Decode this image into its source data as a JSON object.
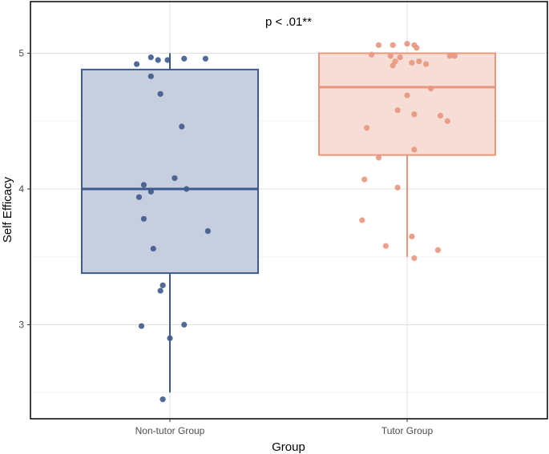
{
  "chart_data": {
    "type": "boxplot",
    "title": "",
    "xlabel": "Group",
    "ylabel": "Self Efficacy",
    "ylim": [
      2.4,
      5.3
    ],
    "yticks": [
      3,
      4,
      5
    ],
    "ytick_labels": [
      "3",
      "4",
      "5"
    ],
    "minor_yticks": [
      2.5,
      3.5,
      4.5
    ],
    "grid": true,
    "legend": "none",
    "annotation": "p < .01**",
    "categories": [
      "Non-tutor Group",
      "Tutor Group"
    ],
    "groups": [
      {
        "name": "Non-tutor Group",
        "color": "#3e5a8c",
        "fill": "#c6cedf",
        "box": {
          "whisker_low": 2.5,
          "q1": 3.38,
          "median": 4.0,
          "q3": 4.88,
          "whisker_high": 5.0
        },
        "points": [
          {
            "x": -0.14,
            "y": 4.92
          },
          {
            "x": -0.08,
            "y": 4.97
          },
          {
            "x": -0.05,
            "y": 4.95
          },
          {
            "x": -0.01,
            "y": 4.95
          },
          {
            "x": 0.06,
            "y": 4.96
          },
          {
            "x": 0.15,
            "y": 4.96
          },
          {
            "x": -0.08,
            "y": 4.83
          },
          {
            "x": -0.04,
            "y": 4.7
          },
          {
            "x": 0.05,
            "y": 4.46
          },
          {
            "x": 0.02,
            "y": 4.08
          },
          {
            "x": -0.11,
            "y": 4.03
          },
          {
            "x": 0.07,
            "y": 4.0
          },
          {
            "x": -0.08,
            "y": 3.98
          },
          {
            "x": -0.13,
            "y": 3.94
          },
          {
            "x": -0.11,
            "y": 3.78
          },
          {
            "x": 0.16,
            "y": 3.69
          },
          {
            "x": -0.07,
            "y": 3.56
          },
          {
            "x": -0.03,
            "y": 3.29
          },
          {
            "x": -0.04,
            "y": 3.25
          },
          {
            "x": -0.12,
            "y": 2.99
          },
          {
            "x": 0.06,
            "y": 3.0
          },
          {
            "x": 0.0,
            "y": 2.9
          },
          {
            "x": -0.03,
            "y": 2.45
          }
        ]
      },
      {
        "name": "Tutor Group",
        "color": "#e8967d",
        "fill": "#f6ddd5",
        "box": {
          "whisker_low": 3.5,
          "q1": 4.25,
          "median": 4.75,
          "q3": 5.0,
          "whisker_high": 5.0
        },
        "points": [
          {
            "x": -0.12,
            "y": 5.06
          },
          {
            "x": -0.06,
            "y": 5.06
          },
          {
            "x": 0.0,
            "y": 5.07
          },
          {
            "x": 0.03,
            "y": 5.06
          },
          {
            "x": 0.04,
            "y": 5.04
          },
          {
            "x": -0.15,
            "y": 4.99
          },
          {
            "x": -0.07,
            "y": 4.98
          },
          {
            "x": -0.03,
            "y": 4.97
          },
          {
            "x": -0.05,
            "y": 4.94
          },
          {
            "x": 0.02,
            "y": 4.93
          },
          {
            "x": 0.05,
            "y": 4.94
          },
          {
            "x": 0.08,
            "y": 4.92
          },
          {
            "x": -0.06,
            "y": 4.91
          },
          {
            "x": 0.18,
            "y": 4.98
          },
          {
            "x": 0.2,
            "y": 4.98
          },
          {
            "x": 0.1,
            "y": 4.74
          },
          {
            "x": 0.0,
            "y": 4.69
          },
          {
            "x": -0.04,
            "y": 4.58
          },
          {
            "x": 0.03,
            "y": 4.55
          },
          {
            "x": 0.14,
            "y": 4.54
          },
          {
            "x": 0.17,
            "y": 4.5
          },
          {
            "x": -0.17,
            "y": 4.45
          },
          {
            "x": 0.03,
            "y": 4.29
          },
          {
            "x": -0.12,
            "y": 4.23
          },
          {
            "x": -0.18,
            "y": 4.07
          },
          {
            "x": -0.04,
            "y": 4.01
          },
          {
            "x": -0.19,
            "y": 3.77
          },
          {
            "x": 0.02,
            "y": 3.65
          },
          {
            "x": -0.09,
            "y": 3.58
          },
          {
            "x": 0.13,
            "y": 3.55
          },
          {
            "x": 0.03,
            "y": 3.49
          }
        ]
      }
    ]
  }
}
